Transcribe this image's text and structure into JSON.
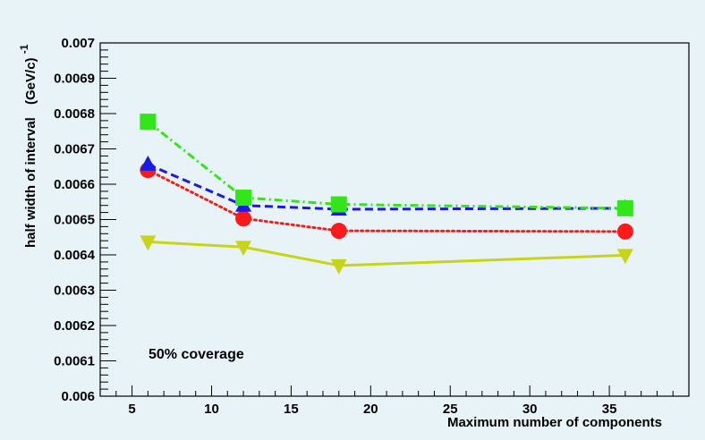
{
  "chart_data": {
    "type": "line",
    "title": "",
    "xlabel": "Maximum number of components",
    "ylabel": "half width of interval",
    "ylabel_unit_base": "(GeV/c)",
    "ylabel_unit_exp": "-1",
    "xlim": [
      3,
      40
    ],
    "ylim": [
      0.006,
      0.007
    ],
    "x_ticks": [
      5,
      10,
      15,
      20,
      25,
      30,
      35
    ],
    "x_tick_labels": [
      "5",
      "10",
      "15",
      "20",
      "25",
      "30",
      "35"
    ],
    "y_ticks": [
      0.006,
      0.0061,
      0.0062,
      0.0063,
      0.0064,
      0.0065,
      0.0066,
      0.0067,
      0.0068,
      0.0069,
      0.007
    ],
    "y_tick_labels": [
      "0.006",
      "0.0061",
      "0.0062",
      "0.0063",
      "0.0064",
      "0.0065",
      "0.0066",
      "0.0067",
      "0.0068",
      "0.0069",
      "0.007"
    ],
    "annotation": "50% coverage",
    "series": [
      {
        "name": "green-squares",
        "color": "#33e61a",
        "marker": "square",
        "line": "dashdot",
        "x": [
          6,
          12,
          18,
          36
        ],
        "y": [
          0.006777,
          0.006562,
          0.006543,
          0.006532
        ]
      },
      {
        "name": "blue-triangles",
        "color": "#1a1ae6",
        "marker": "triangle-up",
        "line": "dashed",
        "x": [
          6,
          12,
          18,
          36
        ],
        "y": [
          0.006656,
          0.00654,
          0.006529,
          0.006532
        ]
      },
      {
        "name": "red-circles",
        "color": "#ff1a1a",
        "marker": "circle",
        "line": "dotted",
        "x": [
          6,
          12,
          18,
          36
        ],
        "y": [
          0.00664,
          0.006503,
          0.006468,
          0.006466
        ]
      },
      {
        "name": "yellow-triangles",
        "color": "#c8d41a",
        "marker": "triangle-down",
        "line": "solid",
        "x": [
          6,
          12,
          18,
          36
        ],
        "y": [
          0.006437,
          0.006422,
          0.00637,
          0.006399
        ]
      }
    ]
  }
}
